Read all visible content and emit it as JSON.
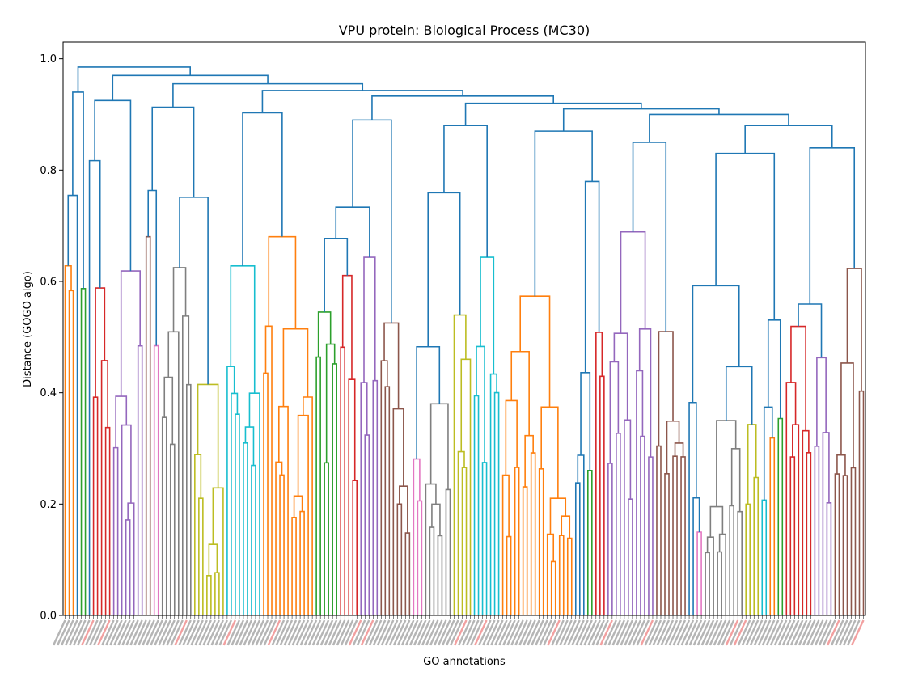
{
  "chart_data": {
    "type": "dendrogram",
    "title": "VPU protein: Biological Process (MC30)",
    "xlabel": "GO annotations",
    "ylabel": "Distance (GOGO algo)",
    "ylim": [
      0,
      1.03
    ],
    "y_ticks": [
      "0.0",
      "0.2",
      "0.4",
      "0.6",
      "0.8",
      "1.0"
    ],
    "y_tick_values": [
      0,
      0.2,
      0.4,
      0.6,
      0.8,
      1.0
    ],
    "leaf_count": 198,
    "above_threshold_color": "#1f77b4",
    "cluster_colors": [
      "#ff7f0e",
      "#2ca02c",
      "#d62728",
      "#9467bd",
      "#8c564b",
      "#e377c2",
      "#7f7f7f",
      "#bcbd22",
      "#17becf"
    ],
    "root_height": 0.985,
    "top_level_merges": [
      0.985,
      0.97,
      0.955,
      0.943,
      0.933,
      0.92,
      0.91,
      0.9,
      0.88,
      0.86
    ]
  }
}
